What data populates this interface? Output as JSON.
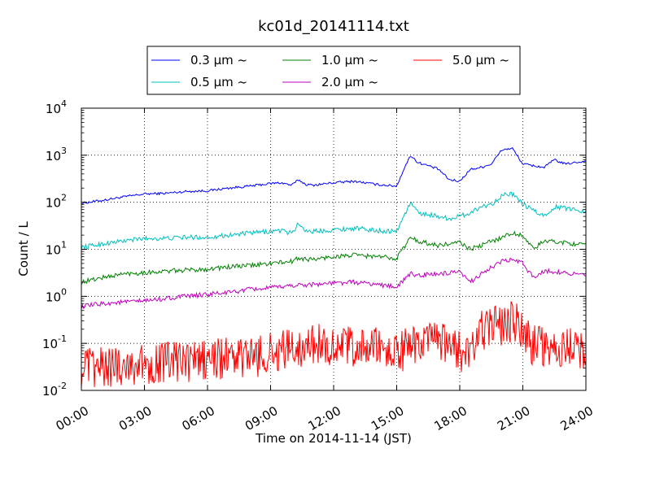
{
  "chart_data": {
    "type": "line",
    "title": "kc01d_20141114.txt",
    "xlabel": "Time on 2014-11-14 (JST)",
    "ylabel": "Count / L",
    "yscale": "log",
    "ylim": [
      0.01,
      10000
    ],
    "xlim": [
      "00:00",
      "24:00"
    ],
    "grid": true,
    "legend_position": "top",
    "x_tick_labels": [
      "00:00",
      "03:00",
      "06:00",
      "09:00",
      "12:00",
      "15:00",
      "18:00",
      "21:00",
      "24:00"
    ],
    "y_tick_labels": [
      {
        "base": "10",
        "exp": "-2"
      },
      {
        "base": "10",
        "exp": "-1"
      },
      {
        "base": "10",
        "exp": "0"
      },
      {
        "base": "10",
        "exp": "1"
      },
      {
        "base": "10",
        "exp": "2"
      },
      {
        "base": "10",
        "exp": "3"
      },
      {
        "base": "10",
        "exp": "4"
      }
    ],
    "series": [
      {
        "name": "0.3 µm ~",
        "color": "#0000ff",
        "x": [
          "00:00",
          "01:00",
          "02:00",
          "03:00",
          "04:00",
          "05:00",
          "06:00",
          "07:00",
          "08:00",
          "09:00",
          "09:30",
          "10:00",
          "10:20",
          "10:40",
          "11:00",
          "12:00",
          "13:00",
          "14:00",
          "15:00",
          "15:20",
          "15:40",
          "16:00",
          "16:30",
          "17:00",
          "17:30",
          "18:00",
          "18:30",
          "19:00",
          "19:30",
          "20:00",
          "20:30",
          "21:00",
          "22:00",
          "22:30",
          "23:00",
          "24:00"
        ],
        "values": [
          95,
          110,
          130,
          150,
          155,
          170,
          175,
          200,
          220,
          250,
          260,
          230,
          300,
          240,
          230,
          260,
          280,
          240,
          220,
          500,
          1000,
          700,
          600,
          500,
          300,
          280,
          500,
          550,
          650,
          1300,
          1400,
          650,
          550,
          800,
          650,
          750
        ]
      },
      {
        "name": "0.5 µm ~",
        "color": "#00bfbf",
        "x": [
          "00:00",
          "01:00",
          "02:00",
          "03:00",
          "04:00",
          "05:00",
          "06:00",
          "07:00",
          "08:00",
          "09:00",
          "09:30",
          "10:00",
          "10:20",
          "10:40",
          "11:00",
          "12:00",
          "13:00",
          "14:00",
          "15:00",
          "15:20",
          "15:40",
          "16:00",
          "16:30",
          "17:00",
          "17:30",
          "18:00",
          "18:30",
          "19:00",
          "19:30",
          "20:00",
          "20:30",
          "21:00",
          "22:00",
          "22:30",
          "23:00",
          "24:00"
        ],
        "values": [
          11,
          13,
          15,
          17,
          17,
          18,
          18,
          20,
          22,
          24,
          25,
          22,
          35,
          25,
          24,
          26,
          28,
          25,
          24,
          50,
          100,
          60,
          55,
          50,
          45,
          50,
          60,
          80,
          90,
          140,
          150,
          90,
          50,
          80,
          75,
          65
        ]
      },
      {
        "name": "1.0 µm ~",
        "color": "#008000",
        "x": [
          "00:00",
          "01:00",
          "02:00",
          "03:00",
          "04:00",
          "05:00",
          "06:00",
          "07:00",
          "08:00",
          "09:00",
          "10:00",
          "10:20",
          "11:00",
          "12:00",
          "13:00",
          "14:00",
          "15:00",
          "15:40",
          "16:00",
          "17:00",
          "18:00",
          "18:30",
          "19:00",
          "20:00",
          "20:30",
          "21:00",
          "21:30",
          "22:00",
          "23:00",
          "24:00"
        ],
        "values": [
          2,
          2.5,
          3,
          3.2,
          3.4,
          3.6,
          3.8,
          4.2,
          4.5,
          5,
          5.5,
          6.5,
          6,
          7,
          7.5,
          7,
          6.5,
          18,
          15,
          12,
          14,
          10,
          12,
          18,
          22,
          20,
          10,
          15,
          14,
          12
        ]
      },
      {
        "name": "2.0 µm ~",
        "color": "#bf00bf",
        "x": [
          "00:00",
          "01:00",
          "02:00",
          "03:00",
          "04:00",
          "05:00",
          "06:00",
          "07:00",
          "08:00",
          "09:00",
          "10:00",
          "11:00",
          "12:00",
          "13:00",
          "14:00",
          "15:00",
          "15:40",
          "16:00",
          "17:00",
          "18:00",
          "18:30",
          "19:00",
          "20:00",
          "20:30",
          "21:00",
          "21:30",
          "22:00",
          "23:00",
          "24:00"
        ],
        "values": [
          0.6,
          0.7,
          0.75,
          0.8,
          0.9,
          1,
          1.1,
          1.2,
          1.4,
          1.5,
          1.7,
          1.8,
          1.9,
          2,
          1.8,
          1.6,
          3,
          2.8,
          3,
          3.2,
          2,
          3,
          5.5,
          6,
          5,
          2.5,
          3.5,
          3.2,
          2.8
        ]
      },
      {
        "name": "5.0 µm ~",
        "color": "#ff0000",
        "x": [
          "00:00",
          "01:00",
          "02:00",
          "03:00",
          "04:00",
          "05:00",
          "06:00",
          "07:00",
          "08:00",
          "09:00",
          "10:00",
          "11:00",
          "12:00",
          "13:00",
          "14:00",
          "15:00",
          "16:00",
          "17:00",
          "18:00",
          "18:30",
          "19:00",
          "20:00",
          "20:30",
          "21:00",
          "21:30",
          "22:00",
          "23:00",
          "24:00"
        ],
        "values": [
          0.03,
          0.03,
          0.035,
          0.035,
          0.04,
          0.04,
          0.045,
          0.05,
          0.05,
          0.06,
          0.08,
          0.1,
          0.09,
          0.08,
          0.08,
          0.06,
          0.1,
          0.1,
          0.07,
          0.05,
          0.2,
          0.25,
          0.3,
          0.2,
          0.09,
          0.08,
          0.08,
          0.07
        ]
      }
    ]
  }
}
